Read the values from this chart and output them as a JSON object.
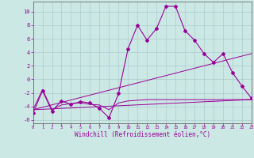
{
  "background_color": "#cce8e4",
  "grid_color": "#aacccc",
  "line_color": "#990099",
  "xlabel": "Windchill (Refroidissement éolien,°C)",
  "xlim": [
    0,
    23
  ],
  "ylim": [
    -6.5,
    11.5
  ],
  "yticks": [
    -6,
    -4,
    -2,
    0,
    2,
    4,
    6,
    8,
    10
  ],
  "xticks": [
    0,
    1,
    2,
    3,
    4,
    5,
    6,
    7,
    8,
    9,
    10,
    11,
    12,
    13,
    14,
    15,
    16,
    17,
    18,
    19,
    20,
    21,
    22,
    23
  ],
  "jagged_x": [
    0,
    1,
    2,
    3,
    4,
    5,
    6,
    7,
    8,
    9,
    10,
    11,
    12,
    13,
    14,
    15,
    16,
    17,
    18,
    19,
    20,
    21,
    22,
    23
  ],
  "jagged_y": [
    -5.0,
    -1.7,
    -4.7,
    -3.2,
    -3.7,
    -3.3,
    -3.5,
    -4.3,
    -5.7,
    -2.1,
    4.5,
    8.0,
    5.8,
    7.5,
    10.8,
    10.8,
    7.2,
    5.8,
    3.8,
    2.5,
    3.8,
    1.0,
    -1.0,
    -2.8
  ],
  "flat_x": [
    0,
    1,
    2,
    3,
    4,
    5,
    6,
    7,
    8,
    9,
    10,
    11,
    12,
    13,
    14,
    15,
    16,
    17,
    18,
    19,
    20,
    21,
    22,
    23
  ],
  "flat_y": [
    -4.5,
    -1.5,
    -4.5,
    -3.8,
    -3.6,
    -3.5,
    -3.7,
    -3.8,
    -4.5,
    -3.5,
    -3.2,
    -3.1,
    -3.0,
    -3.0,
    -3.0,
    -3.0,
    -3.0,
    -3.0,
    -3.0,
    -3.0,
    -3.0,
    -3.0,
    -3.0,
    -3.0
  ],
  "trend1_x": [
    0,
    23
  ],
  "trend1_y": [
    -4.5,
    -3.0
  ],
  "trend2_x": [
    0,
    23
  ],
  "trend2_y": [
    -4.5,
    3.8
  ]
}
